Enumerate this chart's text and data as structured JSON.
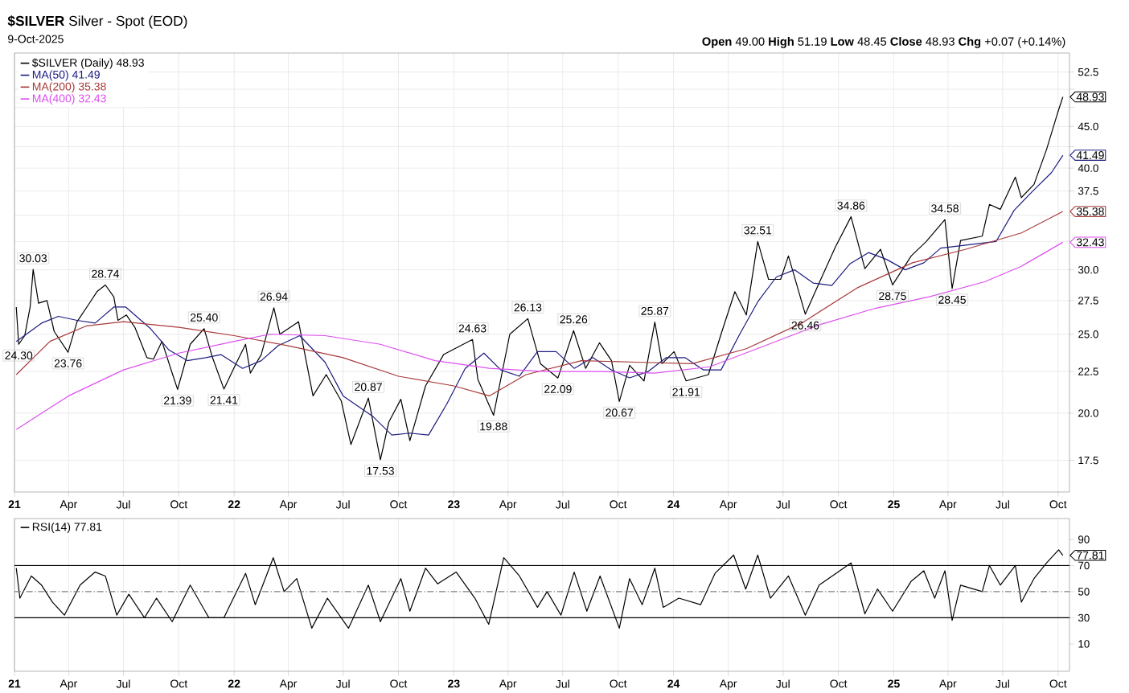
{
  "chart_data": [
    {
      "type": "line",
      "title": "**$SILVER** Silver - Spot (EOD)",
      "subtitle": "9-Oct-2025",
      "log": "y",
      "grid": true,
      "legend": "top left",
      "marker": "none",
      "line_style": "solid",
      "xlim": [
        "2021-01-01",
        "2025-10-20"
      ],
      "xticks": [
        {
          "value": "2021-01-01",
          "label": "21"
        },
        {
          "value": "2021-04-01",
          "label": "Apr"
        },
        {
          "value": "2021-07-01",
          "label": "Jul"
        },
        {
          "value": "2021-10-01",
          "label": "Oct"
        },
        {
          "value": "2022-01-01",
          "label": "22"
        },
        {
          "value": "2022-04-01",
          "label": "Apr"
        },
        {
          "value": "2022-07-01",
          "label": "Jul"
        },
        {
          "value": "2022-10-01",
          "label": "Oct"
        },
        {
          "value": "2023-01-01",
          "label": "23"
        },
        {
          "value": "2023-04-01",
          "label": "Apr"
        },
        {
          "value": "2023-07-01",
          "label": "Jul"
        },
        {
          "value": "2023-10-01",
          "label": "Oct"
        },
        {
          "value": "2024-01-01",
          "label": "24"
        },
        {
          "value": "2024-04-01",
          "label": "Apr"
        },
        {
          "value": "2024-07-01",
          "label": "Jul"
        },
        {
          "value": "2024-10-01",
          "label": "Oct"
        },
        {
          "value": "2025-01-01",
          "label": "25"
        },
        {
          "value": "2025-04-01",
          "label": "Apr"
        },
        {
          "value": "2025-07-01",
          "label": "Jul"
        },
        {
          "value": "2025-10-01",
          "label": "Oct"
        }
      ],
      "ylim": [
        16.0,
        55.4
      ],
      "yticks": [
        {
          "value": 17.5,
          "label": "17.5"
        },
        {
          "value": 20,
          "label": "20.0"
        },
        {
          "value": 22.5,
          "label": "22.5"
        },
        {
          "value": 25,
          "label": "25.0"
        },
        {
          "value": 27.5,
          "label": "27.5"
        },
        {
          "value": 30,
          "label": "30.0"
        },
        {
          "value": 32.5,
          "label": null
        },
        {
          "value": 35,
          "label": null
        },
        {
          "value": 37.5,
          "label": "37.5"
        },
        {
          "value": 40,
          "label": "40.0"
        },
        {
          "value": 42.5,
          "label": null
        },
        {
          "value": 45,
          "label": "45.0"
        },
        {
          "value": 47.5,
          "label": null
        },
        {
          "value": 50,
          "label": null
        },
        {
          "value": 52.5,
          "label": "52.5"
        }
      ],
      "series": [
        {
          "name": "$SILVER (Daily) 48.93",
          "color": "#000000",
          "x": [
            "2021-01-04",
            "2021-01-08",
            "2021-01-18",
            "2021-01-27",
            "2021-02-01",
            "2021-02-10",
            "2021-02-24",
            "2021-03-08",
            "2021-03-31",
            "2021-04-15",
            "2021-05-07",
            "2021-05-18",
            "2021-06-01",
            "2021-06-15",
            "2021-06-22",
            "2021-07-06",
            "2021-07-20",
            "2021-08-09",
            "2021-08-20",
            "2021-09-03",
            "2021-09-20",
            "2021-09-29",
            "2021-10-20",
            "2021-11-12",
            "2021-11-26",
            "2021-12-15",
            "2022-01-04",
            "2022-01-20",
            "2022-01-28",
            "2022-02-15",
            "2022-03-08",
            "2022-03-18",
            "2022-04-18",
            "2022-05-12",
            "2022-06-03",
            "2022-06-28",
            "2022-07-14",
            "2022-08-12",
            "2022-09-01",
            "2022-09-15",
            "2022-10-05",
            "2022-10-20",
            "2022-11-15",
            "2022-12-15",
            "2023-02-01",
            "2023-02-10",
            "2023-03-08",
            "2023-04-04",
            "2023-05-04",
            "2023-05-25",
            "2023-06-23",
            "2023-07-19",
            "2023-08-08",
            "2023-08-31",
            "2023-09-20",
            "2023-10-03",
            "2023-10-20",
            "2023-11-13",
            "2023-12-01",
            "2023-12-13",
            "2024-01-02",
            "2024-01-22",
            "2024-02-28",
            "2024-03-20",
            "2024-04-12",
            "2024-05-01",
            "2024-05-20",
            "2024-06-07",
            "2024-06-27",
            "2024-07-10",
            "2024-08-07",
            "2024-08-30",
            "2024-09-26",
            "2024-10-22",
            "2024-11-14",
            "2024-12-10",
            "2024-12-30",
            "2025-01-30",
            "2025-02-24",
            "2025-03-27",
            "2025-04-08",
            "2025-04-22",
            "2025-05-28",
            "2025-06-09",
            "2025-06-27",
            "2025-07-22",
            "2025-08-01",
            "2025-08-22",
            "2025-09-12",
            "2025-09-30",
            "2025-10-09"
          ],
          "values": [
            27.0,
            24.3,
            24.9,
            27.0,
            30.03,
            27.3,
            27.5,
            25.2,
            23.76,
            25.9,
            27.4,
            28.2,
            28.74,
            27.8,
            26.0,
            26.4,
            25.5,
            23.4,
            23.3,
            24.5,
            22.4,
            21.39,
            24.3,
            25.4,
            23.4,
            21.41,
            23.0,
            24.3,
            22.4,
            23.6,
            26.94,
            25.0,
            25.9,
            21.0,
            22.3,
            20.7,
            18.3,
            20.87,
            17.53,
            19.5,
            20.8,
            18.5,
            21.6,
            23.6,
            24.63,
            22.0,
            19.88,
            25.0,
            26.13,
            23.0,
            22.09,
            25.26,
            22.7,
            24.4,
            23.2,
            20.67,
            22.9,
            21.9,
            25.87,
            23.0,
            23.8,
            21.91,
            22.3,
            25.0,
            28.2,
            26.4,
            32.51,
            29.2,
            29.2,
            31.2,
            26.46,
            28.9,
            32.0,
            34.86,
            30.1,
            31.8,
            28.75,
            31.2,
            32.5,
            34.58,
            28.45,
            32.6,
            33.0,
            36.1,
            35.6,
            39.0,
            36.8,
            38.2,
            42.2,
            46.7,
            48.93
          ]
        },
        {
          "name": "MA(50) 41.49",
          "color": "#1c1c80",
          "x": [
            "2021-01-04",
            "2021-02-15",
            "2021-03-15",
            "2021-04-15",
            "2021-05-15",
            "2021-06-15",
            "2021-07-05",
            "2021-08-15",
            "2021-09-15",
            "2021-10-15",
            "2021-11-15",
            "2021-12-10",
            "2022-01-15",
            "2022-02-15",
            "2022-03-15",
            "2022-04-20",
            "2022-06-01",
            "2022-07-01",
            "2022-08-20",
            "2022-09-20",
            "2022-10-20",
            "2022-11-20",
            "2022-12-20",
            "2023-01-20",
            "2023-02-20",
            "2023-03-20",
            "2023-04-20",
            "2023-05-20",
            "2023-06-20",
            "2023-07-20",
            "2023-08-20",
            "2023-09-20",
            "2023-10-20",
            "2023-11-20",
            "2023-12-20",
            "2024-01-20",
            "2024-02-20",
            "2024-03-20",
            "2024-04-20",
            "2024-05-20",
            "2024-06-20",
            "2024-07-20",
            "2024-08-20",
            "2024-09-20",
            "2024-10-20",
            "2024-11-20",
            "2024-12-20",
            "2025-01-20",
            "2025-02-20",
            "2025-03-20",
            "2025-04-20",
            "2025-05-20",
            "2025-06-20",
            "2025-07-20",
            "2025-08-20",
            "2025-09-20",
            "2025-10-09"
          ],
          "values": [
            24.5,
            25.8,
            26.3,
            26.0,
            25.8,
            27.0,
            27.0,
            25.4,
            23.9,
            23.2,
            23.4,
            23.6,
            22.7,
            23.2,
            24.2,
            24.9,
            23.1,
            21.0,
            19.8,
            18.8,
            18.9,
            18.8,
            20.5,
            22.7,
            23.7,
            22.6,
            22.2,
            23.8,
            23.8,
            22.7,
            23.4,
            22.6,
            22.1,
            22.5,
            23.4,
            23.4,
            22.6,
            22.6,
            25.0,
            27.4,
            29.4,
            30.0,
            28.9,
            28.7,
            30.5,
            31.5,
            30.9,
            30.0,
            30.6,
            31.9,
            32.1,
            32.3,
            32.5,
            35.5,
            37.5,
            39.5,
            41.49
          ]
        },
        {
          "name": "MA(200) 35.38",
          "color": "#a83a3a",
          "x": [
            "2021-01-04",
            "2021-03-01",
            "2021-05-01",
            "2021-07-01",
            "2021-10-01",
            "2022-01-01",
            "2022-04-01",
            "2022-07-01",
            "2022-10-01",
            "2023-01-01",
            "2023-03-01",
            "2023-05-01",
            "2023-08-01",
            "2023-11-01",
            "2024-02-01",
            "2024-05-01",
            "2024-08-01",
            "2024-11-01",
            "2025-02-01",
            "2025-05-01",
            "2025-08-01",
            "2025-10-09"
          ],
          "values": [
            22.3,
            24.5,
            25.6,
            25.9,
            25.5,
            24.9,
            24.2,
            23.4,
            22.2,
            21.6,
            21.0,
            22.3,
            23.2,
            23.1,
            23.0,
            24.0,
            25.8,
            28.5,
            30.6,
            31.8,
            33.3,
            35.38
          ]
        },
        {
          "name": "MA(400) 32.43",
          "color": "#dd4ff0",
          "x": [
            "2021-01-04",
            "2021-04-01",
            "2021-07-01",
            "2021-10-01",
            "2022-01-01",
            "2022-03-01",
            "2022-06-01",
            "2022-09-01",
            "2022-12-01",
            "2023-03-01",
            "2023-06-01",
            "2023-09-01",
            "2023-12-01",
            "2024-03-01",
            "2024-06-01",
            "2024-09-01",
            "2024-12-01",
            "2025-03-01",
            "2025-06-01",
            "2025-08-01",
            "2025-10-09"
          ],
          "values": [
            19.1,
            21.0,
            22.6,
            23.7,
            24.5,
            25.0,
            24.9,
            24.3,
            23.2,
            22.7,
            22.5,
            22.5,
            22.4,
            22.8,
            24.2,
            25.7,
            26.9,
            27.8,
            29.0,
            30.3,
            32.43
          ]
        }
      ],
      "annotations": [
        "**Open** 49.00  **High** 51.19  **Low** 48.45  **Close** 48.93  **Chg** +0.07 (+0.14%)",
        {
          "text": "30.03",
          "x": "2021-02-01",
          "y": 30.03
        },
        {
          "text": "24.30",
          "x": "2021-01-08",
          "y": 24.3
        },
        {
          "text": "28.74",
          "x": "2021-06-01",
          "y": 28.74
        },
        {
          "text": "23.76",
          "x": "2021-03-31",
          "y": 23.76
        },
        {
          "text": "21.39",
          "x": "2021-09-29",
          "y": 21.39
        },
        {
          "text": "25.40",
          "x": "2021-11-12",
          "y": 25.4
        },
        {
          "text": "21.41",
          "x": "2021-12-15",
          "y": 21.41
        },
        {
          "text": "26.94",
          "x": "2022-03-08",
          "y": 26.94
        },
        {
          "text": "20.87",
          "x": "2022-08-12",
          "y": 20.87
        },
        {
          "text": "17.53",
          "x": "2022-09-01",
          "y": 17.53
        },
        {
          "text": "24.63",
          "x": "2023-02-01",
          "y": 24.63
        },
        {
          "text": "19.88",
          "x": "2023-03-08",
          "y": 19.88
        },
        {
          "text": "26.13",
          "x": "2023-05-04",
          "y": 26.13
        },
        {
          "text": "22.09",
          "x": "2023-06-23",
          "y": 22.09
        },
        {
          "text": "25.26",
          "x": "2023-07-19",
          "y": 25.26
        },
        {
          "text": "20.67",
          "x": "2023-10-03",
          "y": 20.67
        },
        {
          "text": "25.87",
          "x": "2023-12-01",
          "y": 25.87
        },
        {
          "text": "21.91",
          "x": "2024-01-22",
          "y": 21.91
        },
        {
          "text": "32.51",
          "x": "2024-05-20",
          "y": 32.51
        },
        {
          "text": "26.46",
          "x": "2024-08-07",
          "y": 26.46
        },
        {
          "text": "34.86",
          "x": "2024-10-22",
          "y": 34.86
        },
        {
          "text": "28.75",
          "x": "2024-12-30",
          "y": 28.75
        },
        {
          "text": "34.58",
          "x": "2025-03-27",
          "y": 34.58
        },
        {
          "text": "28.45",
          "x": "2025-04-08",
          "y": 28.45
        },
        {
          "text": "48.93",
          "x": "2025-10-09",
          "y": 48.93
        },
        {
          "text": "41.49",
          "x": "2025-10-09",
          "y": 41.49
        },
        {
          "text": "35.38",
          "x": "2025-10-09",
          "y": 35.38
        },
        {
          "text": "32.43",
          "x": "2025-10-09",
          "y": 32.43
        }
      ]
    },
    {
      "type": "line",
      "grid": "x",
      "legend": "top left",
      "marker": "none",
      "line_style": "solid",
      "xlim": [
        "2021-01-01",
        "2025-10-20"
      ],
      "xticks": [
        {
          "value": "2021-01-01",
          "label": "21"
        },
        {
          "value": "2021-04-01",
          "label": "Apr"
        },
        {
          "value": "2021-07-01",
          "label": "Jul"
        },
        {
          "value": "2021-10-01",
          "label": "Oct"
        },
        {
          "value": "2022-01-01",
          "label": "22"
        },
        {
          "value": "2022-04-01",
          "label": "Apr"
        },
        {
          "value": "2022-07-01",
          "label": "Jul"
        },
        {
          "value": "2022-10-01",
          "label": "Oct"
        },
        {
          "value": "2023-01-01",
          "label": "23"
        },
        {
          "value": "2023-04-01",
          "label": "Apr"
        },
        {
          "value": "2023-07-01",
          "label": "Jul"
        },
        {
          "value": "2023-10-01",
          "label": "Oct"
        },
        {
          "value": "2024-01-01",
          "label": "24"
        },
        {
          "value": "2024-04-01",
          "label": "Apr"
        },
        {
          "value": "2024-07-01",
          "label": "Jul"
        },
        {
          "value": "2024-10-01",
          "label": "Oct"
        },
        {
          "value": "2025-01-01",
          "label": "25"
        },
        {
          "value": "2025-04-01",
          "label": "Apr"
        },
        {
          "value": "2025-07-01",
          "label": "Jul"
        },
        {
          "value": "2025-10-01",
          "label": "Oct"
        }
      ],
      "ylim": [
        -11,
        106
      ],
      "yticks": [
        10,
        30,
        50,
        70,
        90
      ],
      "ref_lines": [
        {
          "axis": "y",
          "value": 70,
          "color": "#000000"
        },
        {
          "axis": "y",
          "value": 30,
          "color": "#000000"
        },
        {
          "axis": "y",
          "value": 50,
          "color": "#808080",
          "line_style": "dashed"
        }
      ],
      "series": [
        {
          "name": "RSI(14) 77.81",
          "color": "#000000",
          "x": [
            "2021-01-04",
            "2021-01-10",
            "2021-01-29",
            "2021-02-15",
            "2021-03-05",
            "2021-03-25",
            "2021-04-20",
            "2021-05-15",
            "2021-06-01",
            "2021-06-20",
            "2021-07-10",
            "2021-08-05",
            "2021-08-25",
            "2021-09-20",
            "2021-10-20",
            "2021-11-20",
            "2021-12-15",
            "2022-01-05",
            "2022-01-20",
            "2022-02-05",
            "2022-03-07",
            "2022-03-25",
            "2022-04-15",
            "2022-05-10",
            "2022-06-05",
            "2022-07-10",
            "2022-08-12",
            "2022-09-01",
            "2022-10-05",
            "2022-10-20",
            "2022-11-15",
            "2022-12-05",
            "2023-01-05",
            "2023-02-05",
            "2023-02-28",
            "2023-03-25",
            "2023-04-20",
            "2023-05-20",
            "2023-06-05",
            "2023-06-28",
            "2023-07-20",
            "2023-08-10",
            "2023-09-01",
            "2023-10-03",
            "2023-10-20",
            "2023-11-10",
            "2023-12-01",
            "2023-12-15",
            "2024-01-10",
            "2024-02-15",
            "2024-03-10",
            "2024-04-10",
            "2024-04-30",
            "2024-05-20",
            "2024-06-10",
            "2024-07-10",
            "2024-08-07",
            "2024-08-30",
            "2024-09-27",
            "2024-10-22",
            "2024-11-14",
            "2024-12-05",
            "2024-12-30",
            "2025-01-30",
            "2025-02-20",
            "2025-03-10",
            "2025-03-27",
            "2025-04-08",
            "2025-04-22",
            "2025-05-28",
            "2025-06-09",
            "2025-06-27",
            "2025-07-22",
            "2025-08-01",
            "2025-08-22",
            "2025-09-12",
            "2025-10-02",
            "2025-10-09"
          ],
          "values": [
            68,
            45,
            62,
            55,
            42,
            32,
            55,
            65,
            62,
            32,
            48,
            30,
            45,
            27,
            55,
            30,
            30,
            50,
            64,
            40,
            76,
            50,
            60,
            22,
            45,
            22,
            55,
            27,
            60,
            35,
            68,
            56,
            65,
            45,
            25,
            76,
            62,
            38,
            50,
            32,
            65,
            35,
            62,
            22,
            60,
            40,
            68,
            38,
            45,
            40,
            64,
            78,
            52,
            78,
            45,
            62,
            32,
            55,
            64,
            72,
            33,
            52,
            35,
            58,
            66,
            45,
            66,
            28,
            55,
            50,
            70,
            55,
            70,
            42,
            60,
            72,
            82,
            77.81
          ]
        }
      ],
      "annotations": [
        {
          "text": "77.81",
          "x": "2025-10-09",
          "y": 77.81
        }
      ]
    }
  ]
}
